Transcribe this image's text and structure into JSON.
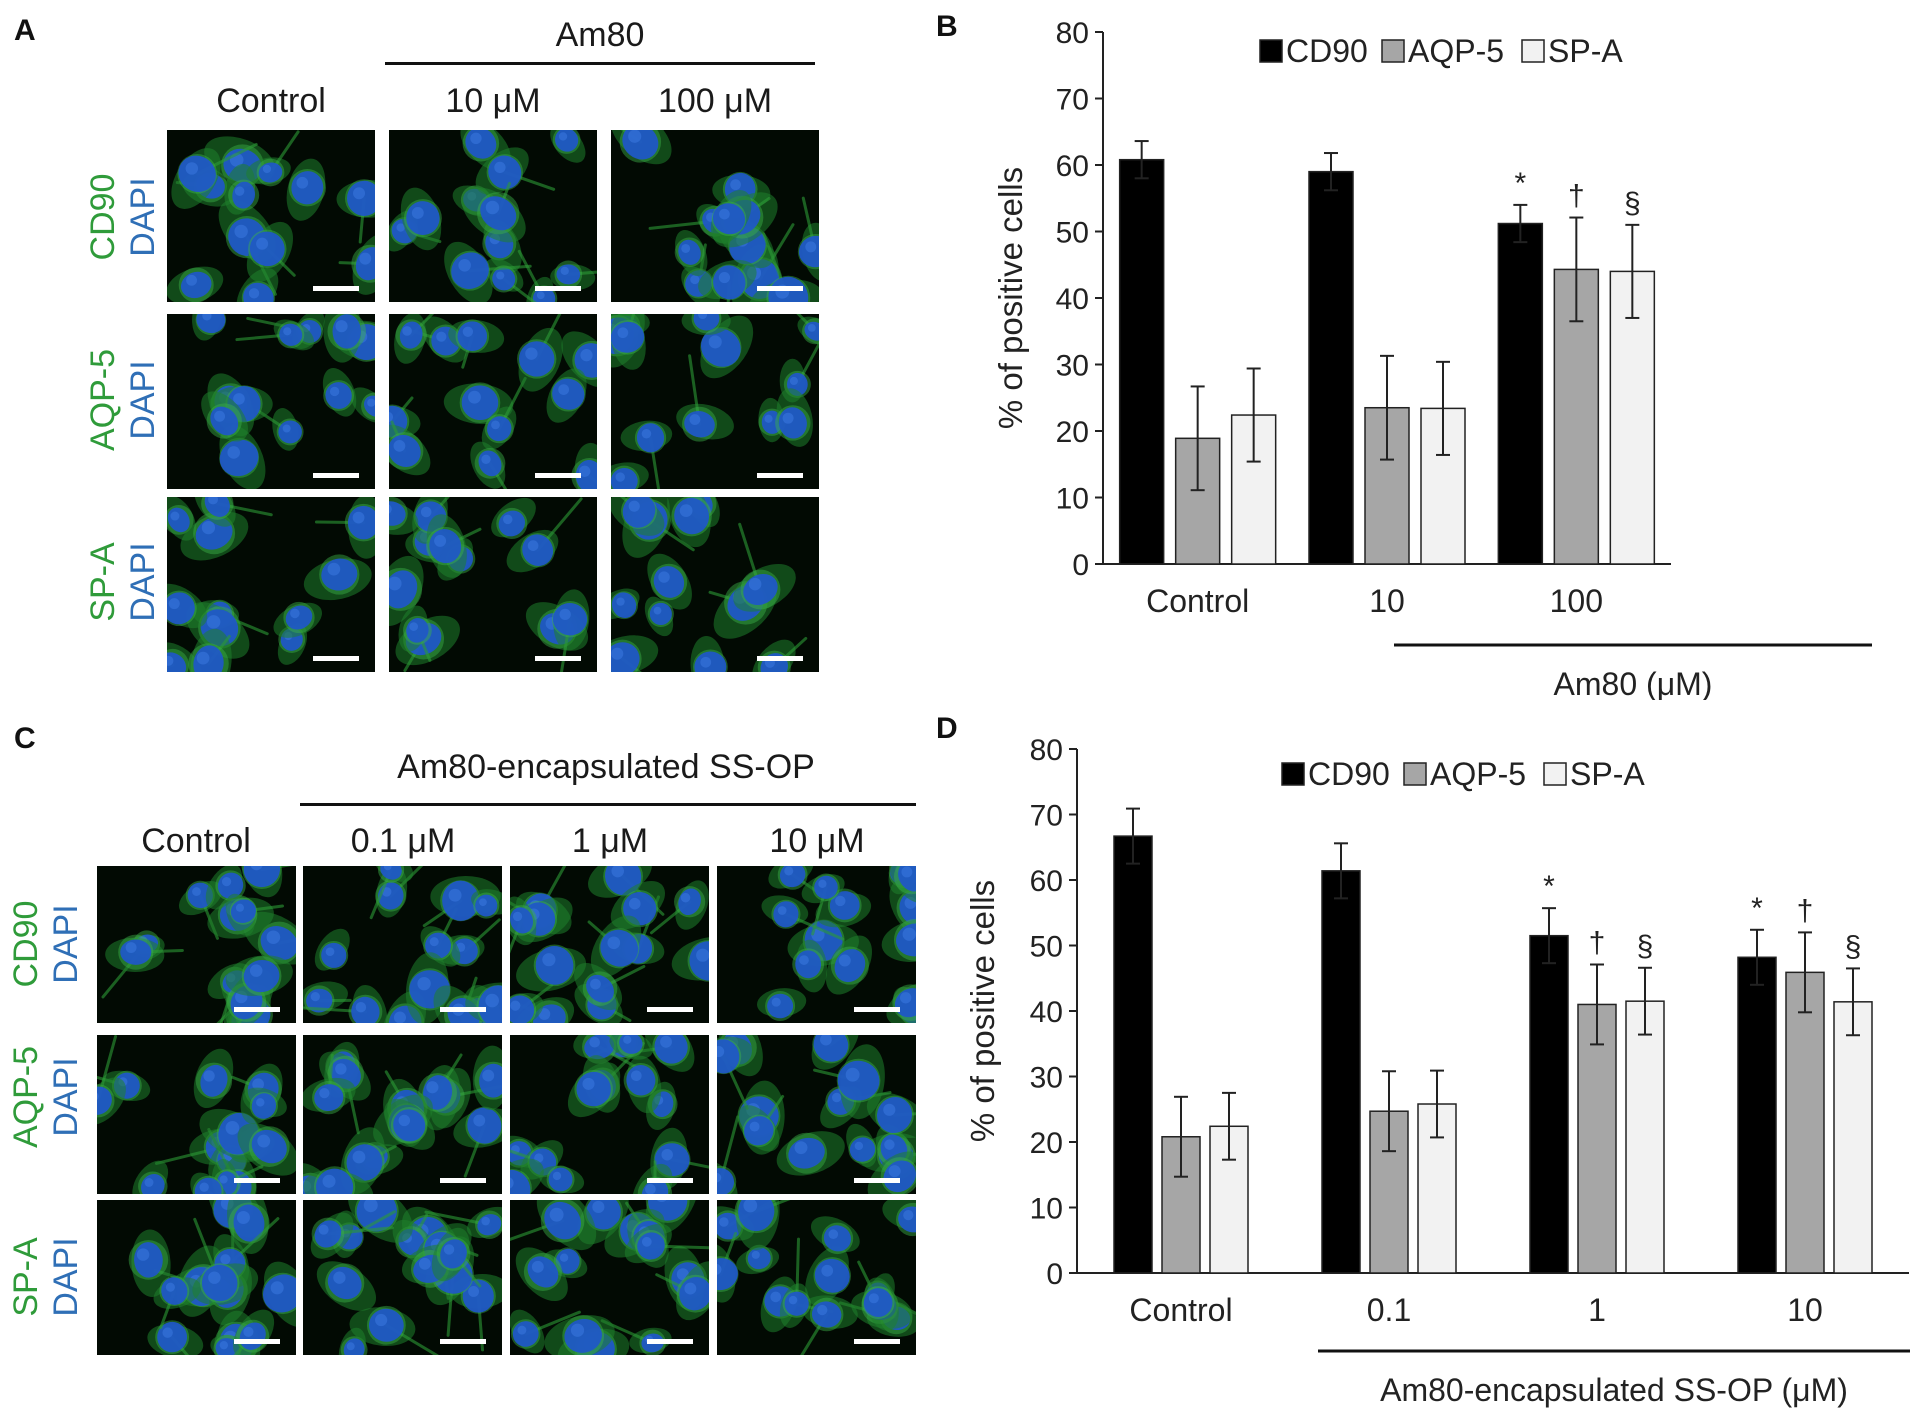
{
  "panels": {
    "a": {
      "letter": "A",
      "group_label": "Am80",
      "columns": [
        "Control",
        "10 μM",
        "100 μM"
      ],
      "rows": [
        {
          "marker": "CD90",
          "stain": "DAPI"
        },
        {
          "marker": "AQP-5",
          "stain": "DAPI"
        },
        {
          "marker": "SP-A",
          "stain": "DAPI"
        }
      ]
    },
    "c": {
      "letter": "C",
      "group_label": "Am80-encapsulated SS-OP",
      "columns": [
        "Control",
        "0.1 μM",
        "1 μM",
        "10 μM"
      ],
      "rows": [
        {
          "marker": "CD90",
          "stain": "DAPI"
        },
        {
          "marker": "AQP-5",
          "stain": "DAPI"
        },
        {
          "marker": "SP-A",
          "stain": "DAPI"
        }
      ]
    },
    "b": {
      "letter": "B"
    },
    "d": {
      "letter": "D"
    }
  },
  "colors": {
    "marker_green": "#2f9b3a",
    "stain_blue": "#2f6fb6",
    "cd90": "#000000",
    "aqp5": "#a6a6a6",
    "spa": "#f2f2f2"
  },
  "chart_data": [
    {
      "type": "bar",
      "panel": "B",
      "categories": [
        "Control",
        "10",
        "100"
      ],
      "group_label": "Am80 (μM)",
      "ylabel": "% of positive cells",
      "ylim": [
        0,
        80
      ],
      "yticks": [
        0,
        10,
        20,
        30,
        40,
        50,
        60,
        70,
        80
      ],
      "legend_position": "top",
      "series": [
        {
          "name": "CD90",
          "color": "#000000",
          "values": [
            60.8,
            59.0,
            51.2
          ],
          "errors": [
            2.8,
            2.8,
            2.8
          ],
          "annotations": [
            "",
            "",
            "*"
          ]
        },
        {
          "name": "AQP-5",
          "color": "#a6a6a6",
          "values": [
            18.9,
            23.5,
            44.3
          ],
          "errors": [
            7.8,
            7.8,
            7.8
          ],
          "annotations": [
            "",
            "",
            "†"
          ]
        },
        {
          "name": "SP-A",
          "color": "#f2f2f2",
          "values": [
            22.4,
            23.4,
            44.0
          ],
          "errors": [
            7.0,
            7.0,
            7.0
          ],
          "annotations": [
            "",
            "",
            "§"
          ]
        }
      ]
    },
    {
      "type": "bar",
      "panel": "D",
      "categories": [
        "Control",
        "0.1",
        "1",
        "10"
      ],
      "group_label": "Am80-encapsulated SS-OP (μM)",
      "ylabel": "% of positive cells",
      "ylim": [
        0,
        80
      ],
      "yticks": [
        0,
        10,
        20,
        30,
        40,
        50,
        60,
        70,
        80
      ],
      "legend_position": "top",
      "series": [
        {
          "name": "CD90",
          "color": "#000000",
          "values": [
            66.7,
            61.4,
            51.5,
            48.2
          ],
          "errors": [
            4.2,
            4.2,
            4.2,
            4.2
          ],
          "annotations": [
            "",
            "",
            "*",
            "*"
          ]
        },
        {
          "name": "AQP-5",
          "color": "#a6a6a6",
          "values": [
            20.8,
            24.7,
            41.0,
            45.9
          ],
          "errors": [
            6.1,
            6.1,
            6.1,
            6.1
          ],
          "annotations": [
            "",
            "",
            "†",
            "†"
          ]
        },
        {
          "name": "SP-A",
          "color": "#f2f2f2",
          "values": [
            22.4,
            25.8,
            41.5,
            41.4
          ],
          "errors": [
            5.1,
            5.1,
            5.1,
            5.1
          ],
          "annotations": [
            "",
            "",
            "§",
            "§"
          ]
        }
      ]
    }
  ]
}
